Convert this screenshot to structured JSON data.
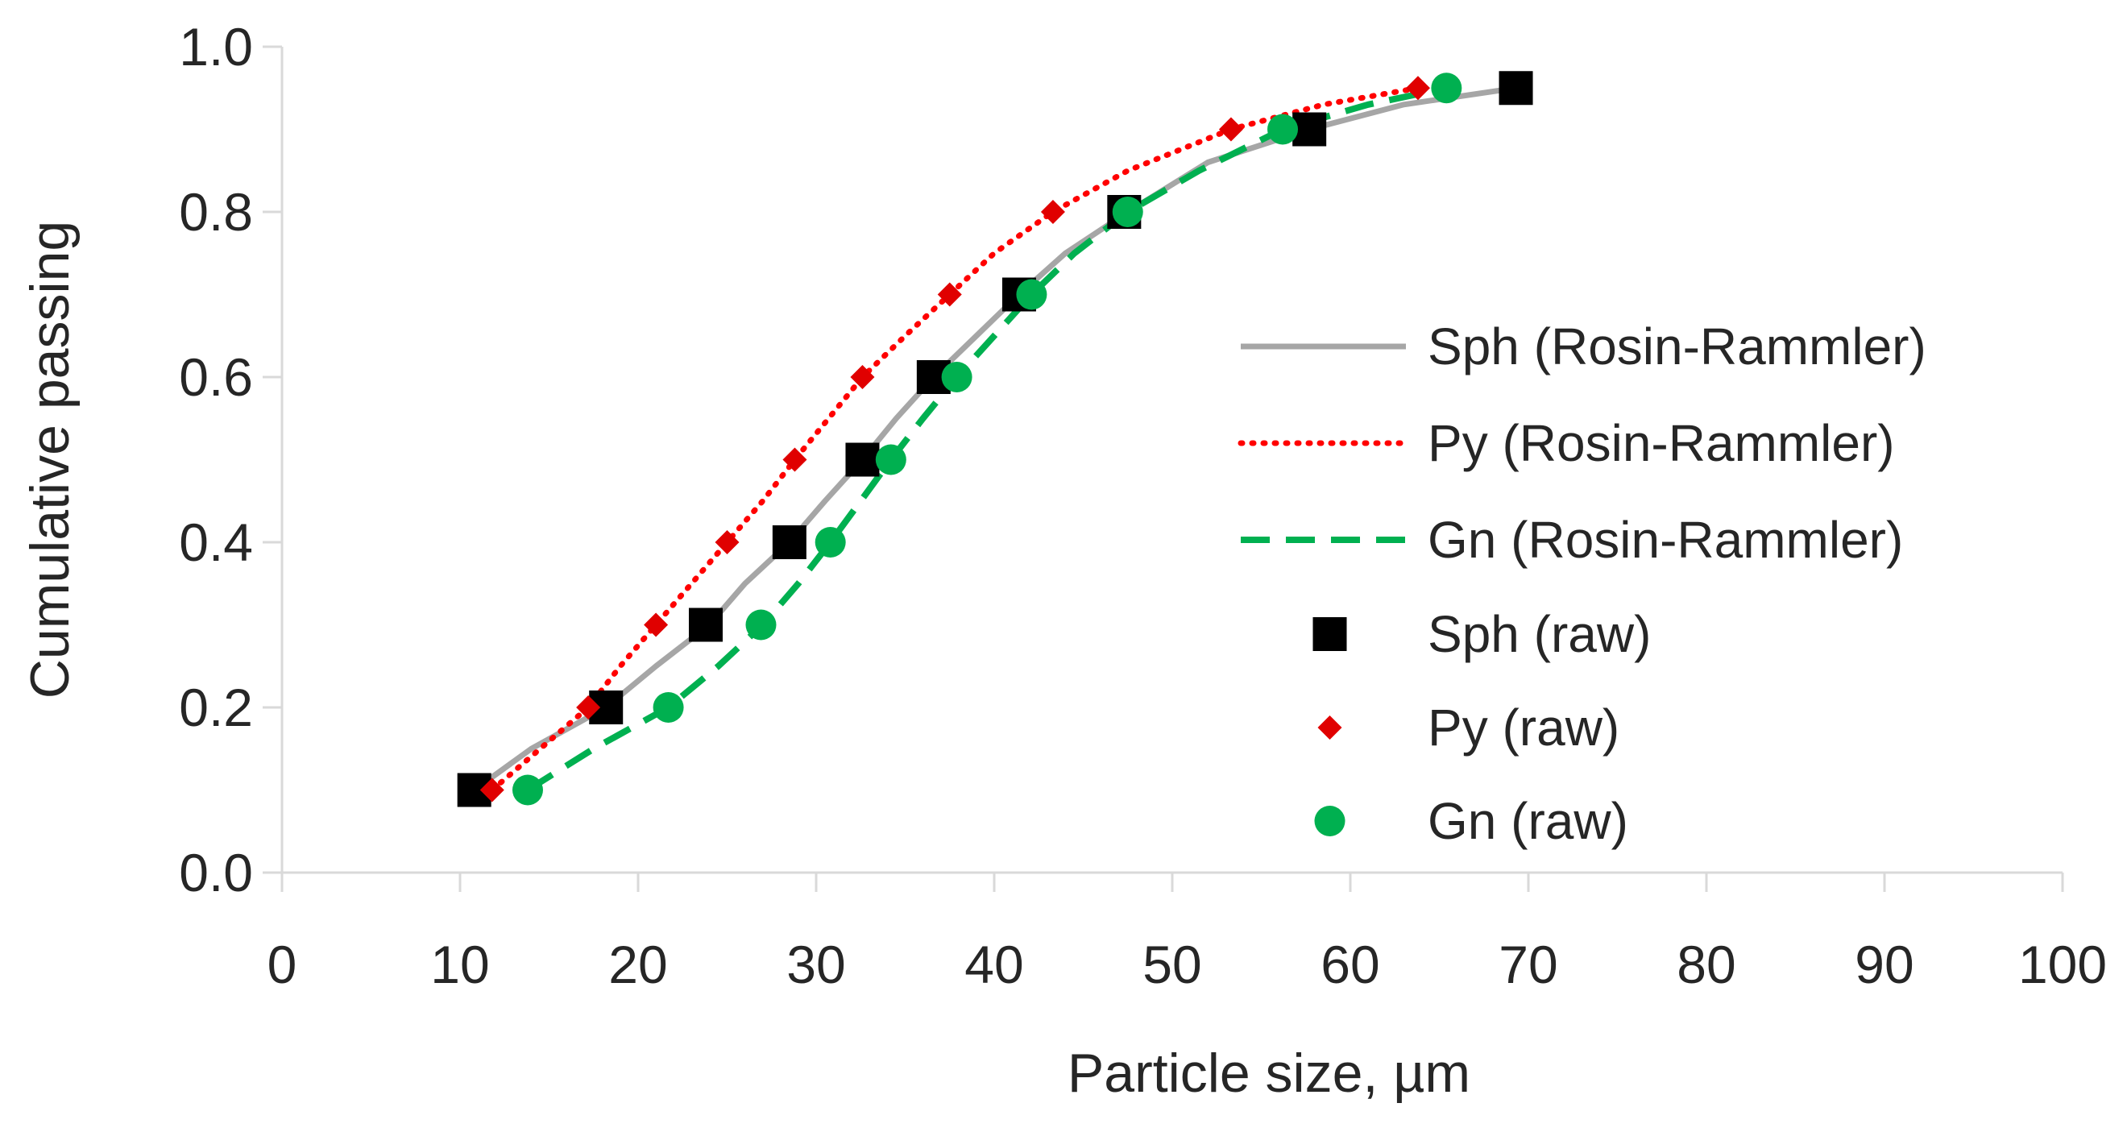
{
  "chart_data": {
    "type": "scatter",
    "title": "",
    "xlabel": "Particle size, µm",
    "ylabel": "Cumulative passing",
    "xlim": [
      0,
      100
    ],
    "ylim": [
      0,
      1.0
    ],
    "x_ticks": [
      0,
      10,
      20,
      30,
      40,
      50,
      60,
      70,
      80,
      90,
      100
    ],
    "y_ticks": [
      0.0,
      0.2,
      0.4,
      0.6,
      0.8,
      1.0
    ],
    "x_tick_labels": [
      "0",
      "10",
      "20",
      "30",
      "40",
      "50",
      "60",
      "70",
      "80",
      "90",
      "100"
    ],
    "y_tick_labels": [
      "0.0",
      "0.2",
      "0.4",
      "0.6",
      "0.8",
      "1.0"
    ],
    "grid": false,
    "legend_position": "right",
    "colors": {
      "sph": "#a6a6a6",
      "py": "#ff0000",
      "gn": "#00b050",
      "sph_marker": "#000000",
      "py_marker": "#e00000",
      "gn_marker": "#00b050",
      "axis": "#d9d9d9"
    },
    "series": [
      {
        "name": "Sph (Rosin-Rammler)",
        "kind": "line",
        "style": "solid",
        "color_key": "sph",
        "x": [
          10.8,
          14,
          18.2,
          21,
          24,
          26,
          28.5,
          30.5,
          32.6,
          34.5,
          36.6,
          39,
          41.4,
          44,
          47.5,
          52,
          57.7,
          63,
          69.3
        ],
        "y": [
          0.1,
          0.15,
          0.2,
          0.25,
          0.3,
          0.35,
          0.4,
          0.45,
          0.5,
          0.55,
          0.6,
          0.65,
          0.7,
          0.75,
          0.8,
          0.86,
          0.9,
          0.93,
          0.95
        ]
      },
      {
        "name": "Py (Rosin-Rammler)",
        "kind": "line",
        "style": "dotted",
        "color_key": "py",
        "x": [
          11.8,
          14.5,
          17.2,
          19,
          21,
          23,
          25,
          27,
          28.8,
          30.7,
          32.6,
          35,
          37.5,
          40,
          43.3,
          47.5,
          53.3,
          58.5,
          63.8
        ],
        "y": [
          0.1,
          0.15,
          0.2,
          0.25,
          0.3,
          0.35,
          0.4,
          0.45,
          0.5,
          0.55,
          0.6,
          0.65,
          0.7,
          0.75,
          0.8,
          0.85,
          0.9,
          0.93,
          0.95
        ]
      },
      {
        "name": "Gn (Rosin-Rammler)",
        "kind": "line",
        "style": "dashed",
        "color_key": "gn",
        "x": [
          13.8,
          17.5,
          21.7,
          24.5,
          27,
          29,
          30.8,
          32.5,
          34.2,
          36,
          37.9,
          40,
          42.1,
          44.5,
          47.5,
          51.5,
          56.2,
          61,
          65.4
        ],
        "y": [
          0.1,
          0.15,
          0.2,
          0.25,
          0.3,
          0.35,
          0.4,
          0.45,
          0.5,
          0.55,
          0.6,
          0.65,
          0.7,
          0.75,
          0.8,
          0.85,
          0.9,
          0.93,
          0.95
        ]
      },
      {
        "name": "Sph (raw)",
        "kind": "marker",
        "marker": "square",
        "color_key": "sph_marker",
        "x": [
          10.8,
          18.2,
          23.8,
          28.5,
          32.6,
          36.6,
          41.4,
          47.3,
          57.7,
          69.3
        ],
        "y": [
          0.1,
          0.2,
          0.3,
          0.4,
          0.5,
          0.6,
          0.7,
          0.8,
          0.9,
          0.95
        ]
      },
      {
        "name": "Py (raw)",
        "kind": "marker",
        "marker": "diamond",
        "color_key": "py_marker",
        "x": [
          11.8,
          17.2,
          21,
          25,
          28.8,
          32.6,
          37.5,
          43.3,
          53.3,
          63.8
        ],
        "y": [
          0.1,
          0.2,
          0.3,
          0.4,
          0.5,
          0.6,
          0.7,
          0.8,
          0.9,
          0.95
        ]
      },
      {
        "name": "Gn (raw)",
        "kind": "marker",
        "marker": "circle",
        "color_key": "gn_marker",
        "x": [
          13.8,
          21.7,
          26.9,
          30.8,
          34.2,
          37.9,
          42.1,
          47.5,
          56.2,
          65.4
        ],
        "y": [
          0.1,
          0.2,
          0.3,
          0.4,
          0.5,
          0.6,
          0.7,
          0.8,
          0.9,
          0.95
        ]
      }
    ]
  }
}
